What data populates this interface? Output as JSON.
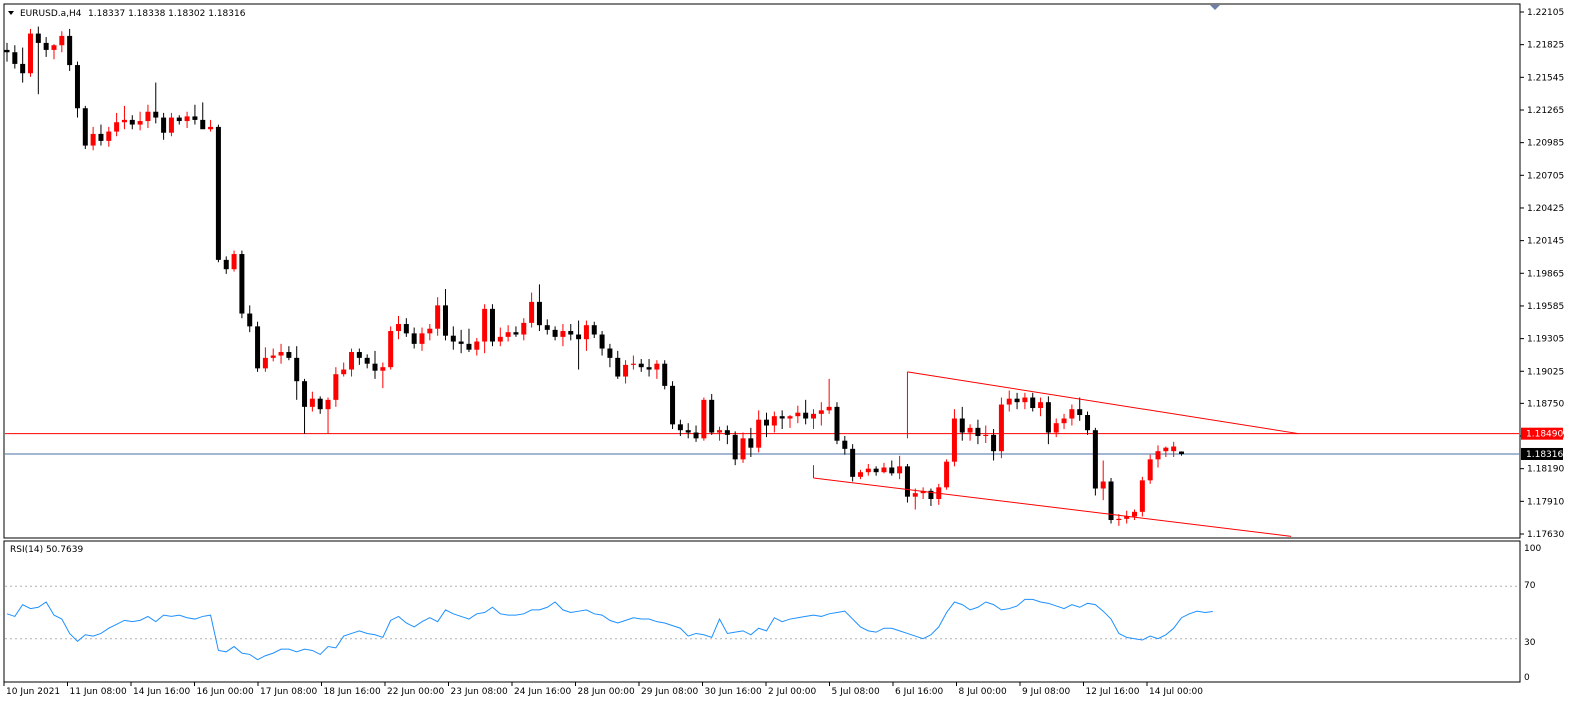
{
  "header": {
    "symbol": "EURUSD.a,H4",
    "ohlc": "1.18337 1.18338 1.18302 1.18316"
  },
  "rsi": {
    "label": "RSI(14) 50.7639",
    "levels": [
      "100",
      "70",
      "30",
      "0"
    ]
  },
  "colors": {
    "bull": "#ff0000",
    "bear": "#000000",
    "current_bar": "#00c000",
    "rsi_line": "#1e90ff",
    "resistance": "#ff0000",
    "bid_line": "#4a6fa5",
    "grid_dotted": "#b0b0b0"
  },
  "chart_data": {
    "type": "candlestick",
    "timeframe": "H4",
    "y_ticks": [
      "1.22105",
      "1.21825",
      "1.21545",
      "1.21265",
      "1.20985",
      "1.20705",
      "1.20425",
      "1.20145",
      "1.19865",
      "1.19585",
      "1.19305",
      "1.19025",
      "1.18750",
      "1.18470",
      "1.18190",
      "1.17910",
      "1.17630"
    ],
    "ylim": [
      1.1763,
      1.22105
    ],
    "x_ticks": [
      "10 Jun 2021",
      "11 Jun 08:00",
      "14 Jun 16:00",
      "16 Jun 00:00",
      "17 Jun 08:00",
      "18 Jun 16:00",
      "22 Jun 00:00",
      "23 Jun 08:00",
      "24 Jun 16:00",
      "28 Jun 00:00",
      "29 Jun 08:00",
      "30 Jun 16:00",
      "2 Jul 00:00",
      "5 Jul 08:00",
      "6 Jul 16:00",
      "8 Jul 00:00",
      "9 Jul 08:00",
      "12 Jul 16:00",
      "14 Jul 00:00"
    ],
    "candles": [
      [
        1.2178,
        1.2184,
        1.2168,
        1.2176
      ],
      [
        1.2176,
        1.2182,
        1.2162,
        1.2166
      ],
      [
        1.2166,
        1.218,
        1.215,
        1.2158
      ],
      [
        1.2158,
        1.2196,
        1.2155,
        1.2192
      ],
      [
        1.2192,
        1.2198,
        1.214,
        1.2184
      ],
      [
        1.2184,
        1.2189,
        1.2172,
        1.2178
      ],
      [
        1.2178,
        1.2183,
        1.217,
        1.2182
      ],
      [
        1.2182,
        1.2194,
        1.2176,
        1.219
      ],
      [
        1.219,
        1.2196,
        1.216,
        1.2165
      ],
      [
        1.2165,
        1.2168,
        1.212,
        1.2128
      ],
      [
        1.2128,
        1.213,
        1.2093,
        1.2096
      ],
      [
        1.2096,
        1.2112,
        1.2092,
        1.2106
      ],
      [
        1.2106,
        1.2114,
        1.2096,
        1.21
      ],
      [
        1.21,
        1.2112,
        1.2095,
        1.2108
      ],
      [
        1.2108,
        1.2124,
        1.2104,
        1.2116
      ],
      [
        1.2116,
        1.213,
        1.211,
        1.2118
      ],
      [
        1.2118,
        1.2122,
        1.211,
        1.2114
      ],
      [
        1.2114,
        1.2125,
        1.2109,
        1.2117
      ],
      [
        1.2117,
        1.2131,
        1.2111,
        1.2125
      ],
      [
        1.2125,
        1.215,
        1.2115,
        1.212
      ],
      [
        1.212,
        1.2124,
        1.2101,
        1.2107
      ],
      [
        1.2107,
        1.2124,
        1.2104,
        1.212
      ],
      [
        1.212,
        1.2122,
        1.2114,
        1.2117
      ],
      [
        1.2117,
        1.2125,
        1.2111,
        1.2121
      ],
      [
        1.2121,
        1.2131,
        1.2114,
        1.2118
      ],
      [
        1.2118,
        1.2133,
        1.2111,
        1.211
      ],
      [
        1.211,
        1.2118,
        1.2108,
        1.2112
      ],
      [
        1.2112,
        1.2114,
        1.1996,
        1.1998
      ],
      [
        1.1998,
        1.2001,
        1.1986,
        1.199
      ],
      [
        1.199,
        1.2006,
        1.1988,
        1.2003
      ],
      [
        1.2003,
        1.2006,
        1.1948,
        1.1952
      ],
      [
        1.1952,
        1.1959,
        1.1936,
        1.1941
      ],
      [
        1.1941,
        1.1945,
        1.1902,
        1.1905
      ],
      [
        1.1905,
        1.1923,
        1.1902,
        1.1914
      ],
      [
        1.1914,
        1.1922,
        1.1911,
        1.1916
      ],
      [
        1.1916,
        1.1926,
        1.1909,
        1.1919
      ],
      [
        1.1919,
        1.1924,
        1.1912,
        1.1914
      ],
      [
        1.1914,
        1.1924,
        1.1878,
        1.1894
      ],
      [
        1.1894,
        1.1896,
        1.1849,
        1.1872
      ],
      [
        1.1872,
        1.1885,
        1.1868,
        1.1879
      ],
      [
        1.1879,
        1.1881,
        1.1866,
        1.187
      ],
      [
        1.187,
        1.188,
        1.1849,
        1.1878
      ],
      [
        1.1878,
        1.1906,
        1.1872,
        1.19
      ],
      [
        1.19,
        1.191,
        1.1898,
        1.1904
      ],
      [
        1.1904,
        1.1922,
        1.1898,
        1.1919
      ],
      [
        1.1919,
        1.1922,
        1.1908,
        1.1914
      ],
      [
        1.1914,
        1.1917,
        1.1905,
        1.1909
      ],
      [
        1.1909,
        1.192,
        1.1896,
        1.1903
      ],
      [
        1.1903,
        1.191,
        1.1888,
        1.1906
      ],
      [
        1.1906,
        1.1941,
        1.1904,
        1.1937
      ],
      [
        1.1937,
        1.195,
        1.193,
        1.1943
      ],
      [
        1.1943,
        1.1948,
        1.1932,
        1.1935
      ],
      [
        1.1935,
        1.194,
        1.1922,
        1.1926
      ],
      [
        1.1926,
        1.194,
        1.192,
        1.1935
      ],
      [
        1.1935,
        1.1943,
        1.1929,
        1.1939
      ],
      [
        1.1939,
        1.1966,
        1.1933,
        1.1959
      ],
      [
        1.1959,
        1.1973,
        1.1929,
        1.1933
      ],
      [
        1.1933,
        1.1941,
        1.1921,
        1.1928
      ],
      [
        1.1928,
        1.1938,
        1.1918,
        1.1926
      ],
      [
        1.1926,
        1.1939,
        1.1919,
        1.1921
      ],
      [
        1.1921,
        1.1931,
        1.1916,
        1.1928
      ],
      [
        1.1928,
        1.196,
        1.1918,
        1.1956
      ],
      [
        1.1956,
        1.196,
        1.1924,
        1.1928
      ],
      [
        1.1928,
        1.194,
        1.1924,
        1.1932
      ],
      [
        1.1932,
        1.1942,
        1.1928,
        1.1936
      ],
      [
        1.1936,
        1.1941,
        1.1932,
        1.1934
      ],
      [
        1.1934,
        1.1948,
        1.1929,
        1.1944
      ],
      [
        1.1944,
        1.197,
        1.194,
        1.1962
      ],
      [
        1.1962,
        1.1977,
        1.1937,
        1.1942
      ],
      [
        1.1942,
        1.1947,
        1.1934,
        1.1938
      ],
      [
        1.1938,
        1.1941,
        1.1929,
        1.1932
      ],
      [
        1.1932,
        1.1943,
        1.1924,
        1.1937
      ],
      [
        1.1937,
        1.1943,
        1.1929,
        1.1934
      ],
      [
        1.1934,
        1.1946,
        1.1904,
        1.193
      ],
      [
        1.193,
        1.1946,
        1.192,
        1.1942
      ],
      [
        1.1942,
        1.1945,
        1.1931,
        1.1934
      ],
      [
        1.1934,
        1.1937,
        1.1916,
        1.1922
      ],
      [
        1.1922,
        1.1926,
        1.1906,
        1.1914
      ],
      [
        1.1914,
        1.192,
        1.1896,
        1.1898
      ],
      [
        1.1898,
        1.1912,
        1.1892,
        1.1908
      ],
      [
        1.1908,
        1.1916,
        1.1904,
        1.1909
      ],
      [
        1.1909,
        1.1913,
        1.1902,
        1.1906
      ],
      [
        1.1906,
        1.1913,
        1.1898,
        1.1904
      ],
      [
        1.1904,
        1.1912,
        1.1896,
        1.1909
      ],
      [
        1.1909,
        1.1912,
        1.1887,
        1.189
      ],
      [
        1.189,
        1.1894,
        1.1853,
        1.1857
      ],
      [
        1.1857,
        1.1861,
        1.1847,
        1.1852
      ],
      [
        1.1852,
        1.1858,
        1.1845,
        1.185
      ],
      [
        1.185,
        1.1856,
        1.1842,
        1.1845
      ],
      [
        1.1845,
        1.188,
        1.1843,
        1.1878
      ],
      [
        1.1878,
        1.1883,
        1.1848,
        1.185
      ],
      [
        1.185,
        1.1855,
        1.1843,
        1.1852
      ],
      [
        1.1852,
        1.1856,
        1.184,
        1.1848
      ],
      [
        1.1848,
        1.1851,
        1.1822,
        1.1827
      ],
      [
        1.1827,
        1.185,
        1.1824,
        1.1845
      ],
      [
        1.1845,
        1.1854,
        1.1829,
        1.1837
      ],
      [
        1.1837,
        1.1869,
        1.1833,
        1.1861
      ],
      [
        1.1861,
        1.1867,
        1.1846,
        1.1856
      ],
      [
        1.1856,
        1.1868,
        1.185,
        1.1864
      ],
      [
        1.1864,
        1.1869,
        1.1853,
        1.1862
      ],
      [
        1.1862,
        1.1865,
        1.1854,
        1.1864
      ],
      [
        1.1864,
        1.1873,
        1.1858,
        1.1867
      ],
      [
        1.1867,
        1.1878,
        1.1857,
        1.1862
      ],
      [
        1.1862,
        1.187,
        1.1853,
        1.1866
      ],
      [
        1.1866,
        1.1876,
        1.1856,
        1.1869
      ],
      [
        1.1869,
        1.1896,
        1.1866,
        1.1872
      ],
      [
        1.1872,
        1.1876,
        1.184,
        1.1843
      ],
      [
        1.1843,
        1.1847,
        1.1831,
        1.1836
      ],
      [
        1.1836,
        1.184,
        1.1808,
        1.1812
      ],
      [
        1.1812,
        1.1818,
        1.181,
        1.1816
      ],
      [
        1.1816,
        1.1823,
        1.1813,
        1.1819
      ],
      [
        1.1819,
        1.1821,
        1.1813,
        1.1816
      ],
      [
        1.1816,
        1.1824,
        1.1815,
        1.182
      ],
      [
        1.182,
        1.1826,
        1.1813,
        1.1815
      ],
      [
        1.1815,
        1.183,
        1.181,
        1.1821
      ],
      [
        1.1821,
        1.1823,
        1.179,
        1.1795
      ],
      [
        1.1795,
        1.1802,
        1.1784,
        1.1798
      ],
      [
        1.1798,
        1.1803,
        1.1793,
        1.18
      ],
      [
        1.18,
        1.1802,
        1.1787,
        1.1793
      ],
      [
        1.1793,
        1.1806,
        1.1788,
        1.1803
      ],
      [
        1.1803,
        1.1827,
        1.1801,
        1.1825
      ],
      [
        1.1825,
        1.187,
        1.1821,
        1.1862
      ],
      [
        1.1862,
        1.1872,
        1.1843,
        1.185
      ],
      [
        1.185,
        1.1857,
        1.1843,
        1.1854
      ],
      [
        1.1854,
        1.1861,
        1.184,
        1.1847
      ],
      [
        1.1847,
        1.1856,
        1.1841,
        1.1848
      ],
      [
        1.1848,
        1.1853,
        1.1826,
        1.1834
      ],
      [
        1.1834,
        1.188,
        1.1828,
        1.1874
      ],
      [
        1.1874,
        1.1886,
        1.1868,
        1.1879
      ],
      [
        1.1879,
        1.1884,
        1.187,
        1.1876
      ],
      [
        1.1876,
        1.1884,
        1.187,
        1.188
      ],
      [
        1.188,
        1.1884,
        1.1868,
        1.1871
      ],
      [
        1.1871,
        1.188,
        1.1864,
        1.1876
      ],
      [
        1.1876,
        1.1881,
        1.184,
        1.185
      ],
      [
        1.185,
        1.1862,
        1.1846,
        1.1858
      ],
      [
        1.1858,
        1.1866,
        1.1853,
        1.1862
      ],
      [
        1.1862,
        1.1874,
        1.1856,
        1.187
      ],
      [
        1.187,
        1.188,
        1.186,
        1.1865
      ],
      [
        1.1865,
        1.1868,
        1.1848,
        1.1852
      ],
      [
        1.1852,
        1.1854,
        1.1796,
        1.1802
      ],
      [
        1.1802,
        1.1826,
        1.1792,
        1.1808
      ],
      [
        1.1808,
        1.1811,
        1.1772,
        1.1775
      ],
      [
        1.1775,
        1.178,
        1.177,
        1.1776
      ],
      [
        1.1776,
        1.1783,
        1.1772,
        1.1778
      ],
      [
        1.1778,
        1.1784,
        1.1775,
        1.1782
      ],
      [
        1.1782,
        1.1812,
        1.1778,
        1.1809
      ],
      [
        1.1809,
        1.1831,
        1.1806,
        1.1827
      ],
      [
        1.1827,
        1.1839,
        1.182,
        1.1834
      ],
      [
        1.1834,
        1.1838,
        1.1829,
        1.1837
      ],
      [
        1.1834,
        1.1842,
        1.1829,
        1.1838
      ],
      [
        1.18337,
        1.18338,
        1.18302,
        1.18316
      ]
    ],
    "rsi_values": [
      49,
      47,
      56,
      53,
      54,
      58,
      48,
      45,
      34,
      28,
      33,
      32,
      34,
      38,
      41,
      44,
      43,
      44,
      47,
      43,
      48,
      47,
      48,
      46,
      45,
      47,
      48,
      21,
      20,
      24,
      19,
      18,
      14,
      17,
      19,
      22,
      22,
      20,
      22,
      21,
      18,
      24,
      23,
      32,
      34,
      36,
      34,
      33,
      31,
      44,
      47,
      42,
      39,
      43,
      46,
      43,
      52,
      49,
      47,
      45,
      49,
      50,
      54,
      49,
      48,
      48,
      49,
      52,
      52,
      54,
      58,
      52,
      50,
      51,
      52,
      49,
      48,
      44,
      42,
      44,
      46,
      45,
      45,
      43,
      42,
      40,
      38,
      32,
      34,
      33,
      31,
      45,
      34,
      35,
      36,
      33,
      38,
      36,
      46,
      43,
      45,
      46,
      47,
      48,
      47,
      49,
      50,
      51,
      45,
      39,
      36,
      35,
      38,
      38,
      36,
      34,
      32,
      30,
      33,
      39,
      50,
      58,
      56,
      52,
      54,
      58,
      56,
      52,
      53,
      55,
      60,
      60,
      58,
      57,
      55,
      53,
      56,
      54,
      57,
      56,
      51,
      45,
      34,
      31,
      30,
      29,
      32,
      30,
      33,
      38,
      46,
      49,
      51,
      50,
      50.7639
    ],
    "channel_upper": [
      [
        115,
        1.1902
      ],
      [
        165,
        1.1849
      ]
    ],
    "channel_lower": [
      [
        103,
        1.1811
      ],
      [
        164,
        1.1761
      ]
    ],
    "resistance_level": "1.18490",
    "bid_price": "1.18316",
    "rsi_ylim": [
      0,
      100
    ],
    "rsi_levels": [
      70,
      30
    ]
  }
}
